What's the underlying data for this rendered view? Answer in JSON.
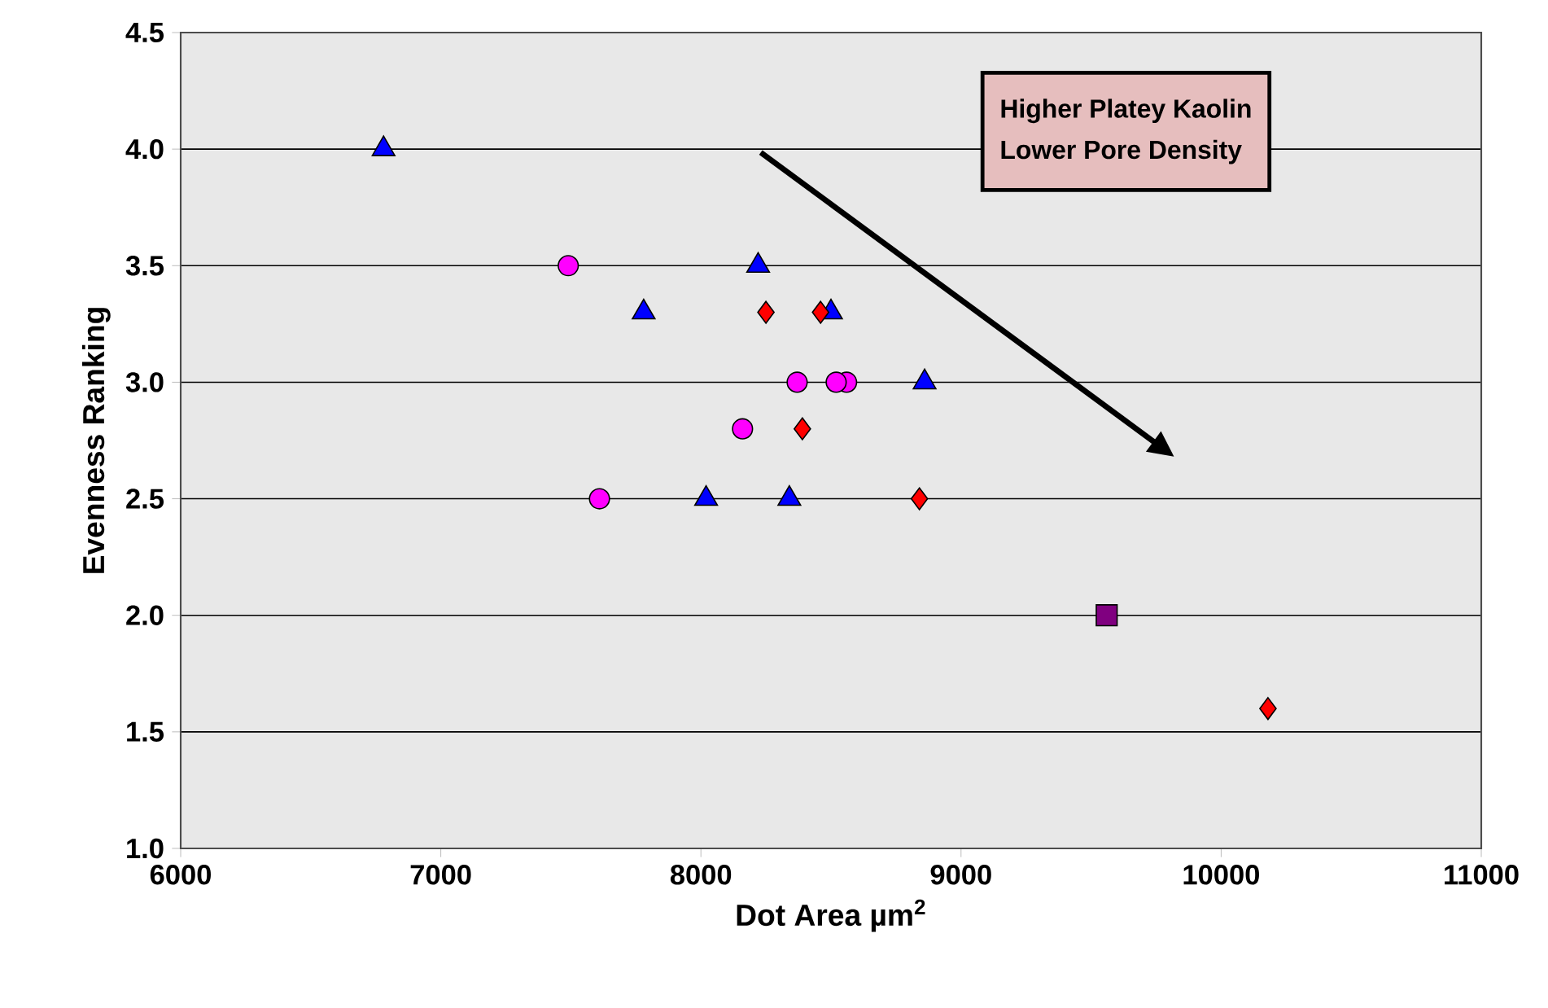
{
  "chart_data": {
    "type": "scatter",
    "xlabel": "Dot Area µm$^{2}$",
    "ylabel": "Evenness Ranking",
    "xlim": [
      6000,
      11000
    ],
    "xticks": [
      6000,
      7000,
      8000,
      9000,
      10000,
      11000
    ],
    "ylim": [
      1.0,
      4.5
    ],
    "yticks": [
      {
        "value": 1.0,
        "label": "1.0"
      },
      {
        "value": 1.5,
        "label": "1.5"
      },
      {
        "value": 2.0,
        "label": "2.0"
      },
      {
        "value": 2.5,
        "label": "2.5"
      },
      {
        "value": 3.0,
        "label": "3.0"
      },
      {
        "value": 3.5,
        "label": "3.5"
      },
      {
        "value": 4.0,
        "label": "4.0"
      },
      {
        "value": 4.5,
        "label": "4.5"
      }
    ],
    "grid": "y",
    "annotations": [
      "Higher Platey Kaolin",
      "Lower Pore Density"
    ],
    "series": [
      {
        "color": "#0000ff",
        "marker": "triangle",
        "x": [
          6780,
          7780,
          8220,
          8500,
          8860,
          8020,
          8340
        ],
        "values": [
          4.0,
          3.3,
          3.5,
          3.3,
          3.0,
          2.5,
          2.5
        ]
      },
      {
        "color": "#ff00ff",
        "marker": "circle",
        "x": [
          7490,
          7610,
          8160,
          8370,
          8560,
          8520
        ],
        "values": [
          3.5,
          2.5,
          2.8,
          3.0,
          3.0,
          3.0
        ]
      },
      {
        "color": "#ff0000",
        "marker": "diamond",
        "x": [
          8250,
          8460,
          8390,
          8840,
          10180
        ],
        "values": [
          3.3,
          3.3,
          2.8,
          2.5,
          1.6
        ]
      },
      {
        "color": "#800080",
        "marker": "square",
        "x": [
          9560
        ],
        "values": [
          2.0
        ]
      }
    ]
  }
}
